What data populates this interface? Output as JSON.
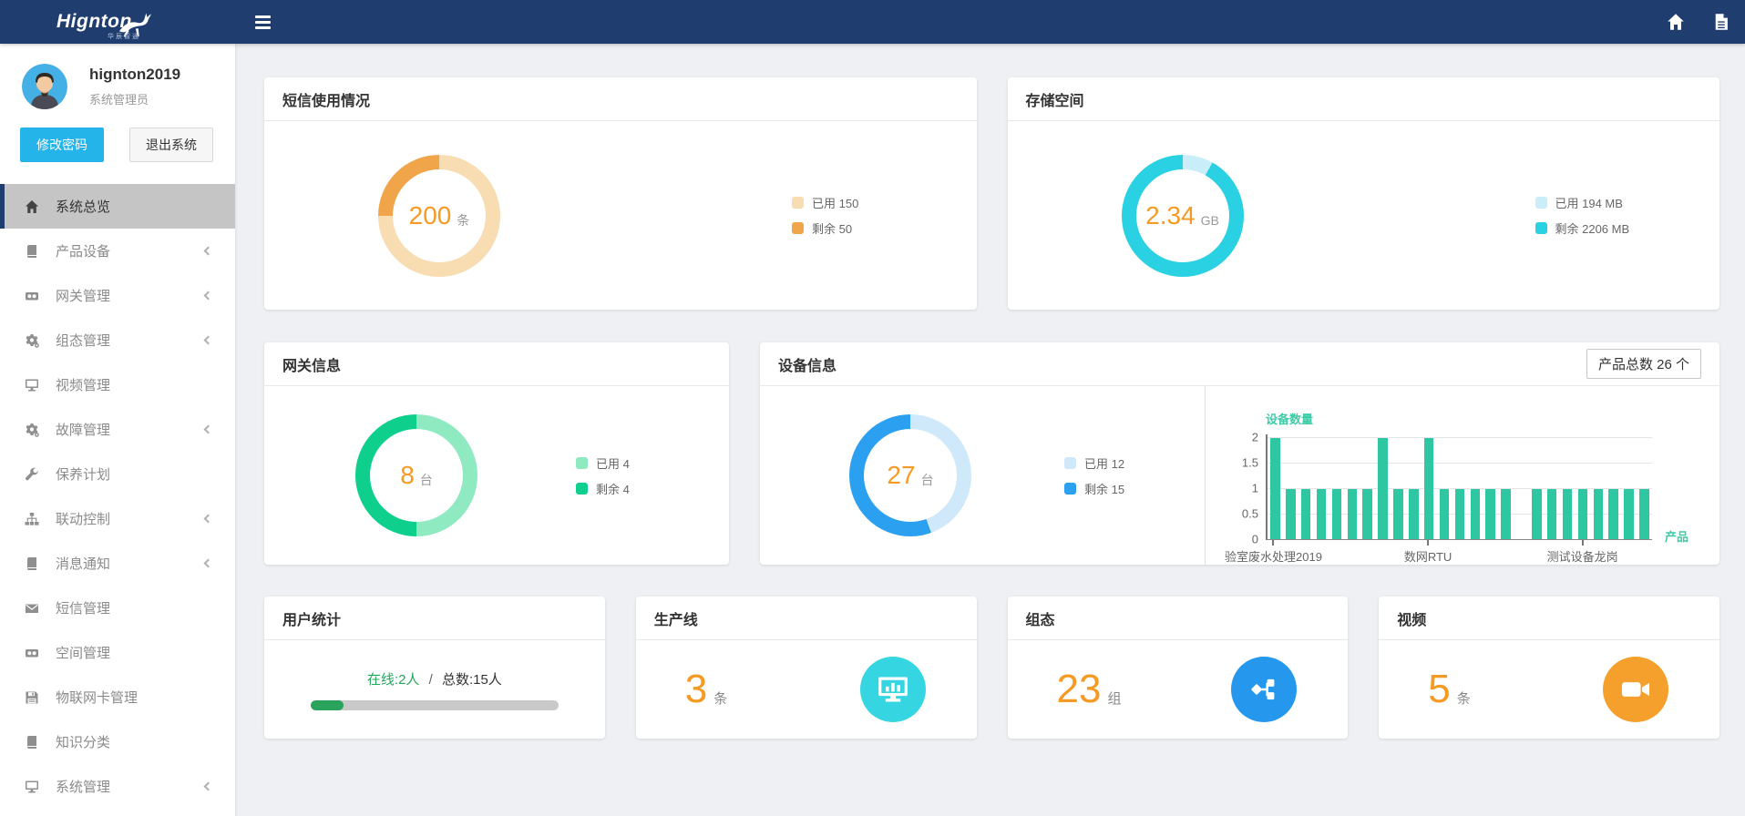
{
  "logo": {
    "text": "Hignton",
    "tagline": "华辰智通"
  },
  "topbar": {
    "home_icon": "home-icon",
    "document_icon": "document-icon",
    "menu_icon": "hamburger-icon",
    "color": "#203d6f"
  },
  "user": {
    "name": "hignton2019",
    "role": "系统管理员",
    "change_password_label": "修改密码",
    "logout_label": "退出系统"
  },
  "sidebar": {
    "items": [
      {
        "id": "system-overview",
        "label": "系统总览",
        "icon": "home",
        "active": true,
        "chevron": false
      },
      {
        "id": "product-devices",
        "label": "产品设备",
        "icon": "book",
        "active": false,
        "chevron": true
      },
      {
        "id": "gateway-management",
        "label": "网关管理",
        "icon": "video-box",
        "active": false,
        "chevron": true
      },
      {
        "id": "configuration-management",
        "label": "组态管理",
        "icon": "gear",
        "active": false,
        "chevron": true
      },
      {
        "id": "video-management",
        "label": "视频管理",
        "icon": "monitor",
        "active": false,
        "chevron": false
      },
      {
        "id": "fault-management",
        "label": "故障管理",
        "icon": "gear",
        "active": false,
        "chevron": true
      },
      {
        "id": "maintenance-plan",
        "label": "保养计划",
        "icon": "wrench",
        "active": false,
        "chevron": false
      },
      {
        "id": "linkage-control",
        "label": "联动控制",
        "icon": "sitemap",
        "active": false,
        "chevron": true
      },
      {
        "id": "message-notification",
        "label": "消息通知",
        "icon": "book",
        "active": false,
        "chevron": true
      },
      {
        "id": "sms-management",
        "label": "短信管理",
        "icon": "envelope",
        "active": false,
        "chevron": false
      },
      {
        "id": "space-management",
        "label": "空间管理",
        "icon": "video-box",
        "active": false,
        "chevron": false
      },
      {
        "id": "iot-card-management",
        "label": "物联网卡管理",
        "icon": "floppy",
        "active": false,
        "chevron": false
      },
      {
        "id": "knowledge-classification",
        "label": "知识分类",
        "icon": "book",
        "active": false,
        "chevron": false
      },
      {
        "id": "system-management",
        "label": "系统管理",
        "icon": "monitor",
        "active": false,
        "chevron": true
      }
    ]
  },
  "cards": {
    "sms": {
      "title": "短信使用情况",
      "value": "200",
      "unit": "条",
      "donut": {
        "segments": [
          {
            "label": "已用 150",
            "value": 150,
            "color": "#f8dcb2"
          },
          {
            "label": "剩余 50",
            "value": 50,
            "color": "#f0a54b"
          }
        ]
      },
      "legend": [
        {
          "label": "已用 150",
          "color": "#f8dcb2"
        },
        {
          "label": "剩余 50",
          "color": "#f0a54b"
        }
      ]
    },
    "storage": {
      "title": "存储空间",
      "value": "2.34",
      "unit": "GB",
      "donut": {
        "segments": [
          {
            "label": "已用 194 MB",
            "value": 194,
            "color": "#c9edf9"
          },
          {
            "label": "剩余 2206 MB",
            "value": 2206,
            "color": "#29d1e3"
          }
        ]
      },
      "legend": [
        {
          "label": "已用 194 MB",
          "color": "#c9edf9"
        },
        {
          "label": "剩余 2206 MB",
          "color": "#29d1e3"
        }
      ]
    },
    "gateway": {
      "title": "网关信息",
      "value": "8",
      "unit": "台",
      "donut": {
        "segments": [
          {
            "label": "已用 4",
            "value": 4,
            "color": "#8fe9c1"
          },
          {
            "label": "剩余 4",
            "value": 4,
            "color": "#0ed08c"
          }
        ]
      },
      "legend": [
        {
          "label": "已用 4",
          "color": "#8fe9c1"
        },
        {
          "label": "剩余 4",
          "color": "#0ed08c"
        }
      ]
    },
    "device": {
      "title": "设备信息",
      "badge": "产品总数 26 个",
      "value": "27",
      "unit": "台",
      "donut": {
        "segments": [
          {
            "label": "已用 12",
            "value": 12,
            "color": "#cfe9fb"
          },
          {
            "label": "剩余 15",
            "value": 15,
            "color": "#2b9ff0"
          }
        ]
      },
      "legend": [
        {
          "label": "已用 12",
          "color": "#cfe9fb"
        },
        {
          "label": "剩余 15",
          "color": "#2b9ff0"
        }
      ]
    },
    "users": {
      "title": "用户统计",
      "online_label": "在线:2人",
      "separator": "/",
      "total_label": "总数:15人",
      "online": 2,
      "total": 15,
      "progress_pct": 13.3,
      "bar_color": "#2aa35c"
    },
    "production": {
      "title": "生产线",
      "value": "3",
      "unit": "条",
      "icon": "monitor-chart-icon",
      "icon_color": "#35d5e2"
    },
    "config": {
      "title": "组态",
      "value": "23",
      "unit": "组",
      "icon": "flowchart-icon",
      "icon_color": "#2598ed"
    },
    "video": {
      "title": "视频",
      "value": "5",
      "unit": "条",
      "icon": "video-camera-icon",
      "icon_color": "#f5a02c"
    }
  },
  "chart_data": {
    "type": "bar",
    "title": "设备数量",
    "xlabel": "产品",
    "ylim": [
      0,
      2
    ],
    "yticks": [
      0,
      0.5,
      1,
      1.5,
      2
    ],
    "grid": true,
    "bar_color": "#2ec7a2",
    "values": [
      2,
      1,
      1,
      1,
      1,
      1,
      1,
      2,
      1,
      1,
      2,
      1,
      1,
      1,
      1,
      1,
      0,
      1,
      1,
      1,
      1,
      1,
      1,
      1,
      1
    ],
    "x_tick_labels": [
      {
        "label": "验室废水处理2019",
        "slot": 0
      },
      {
        "label": "数网RTU",
        "slot": 10
      },
      {
        "label": "测试设备龙岗",
        "slot": 20
      }
    ]
  }
}
